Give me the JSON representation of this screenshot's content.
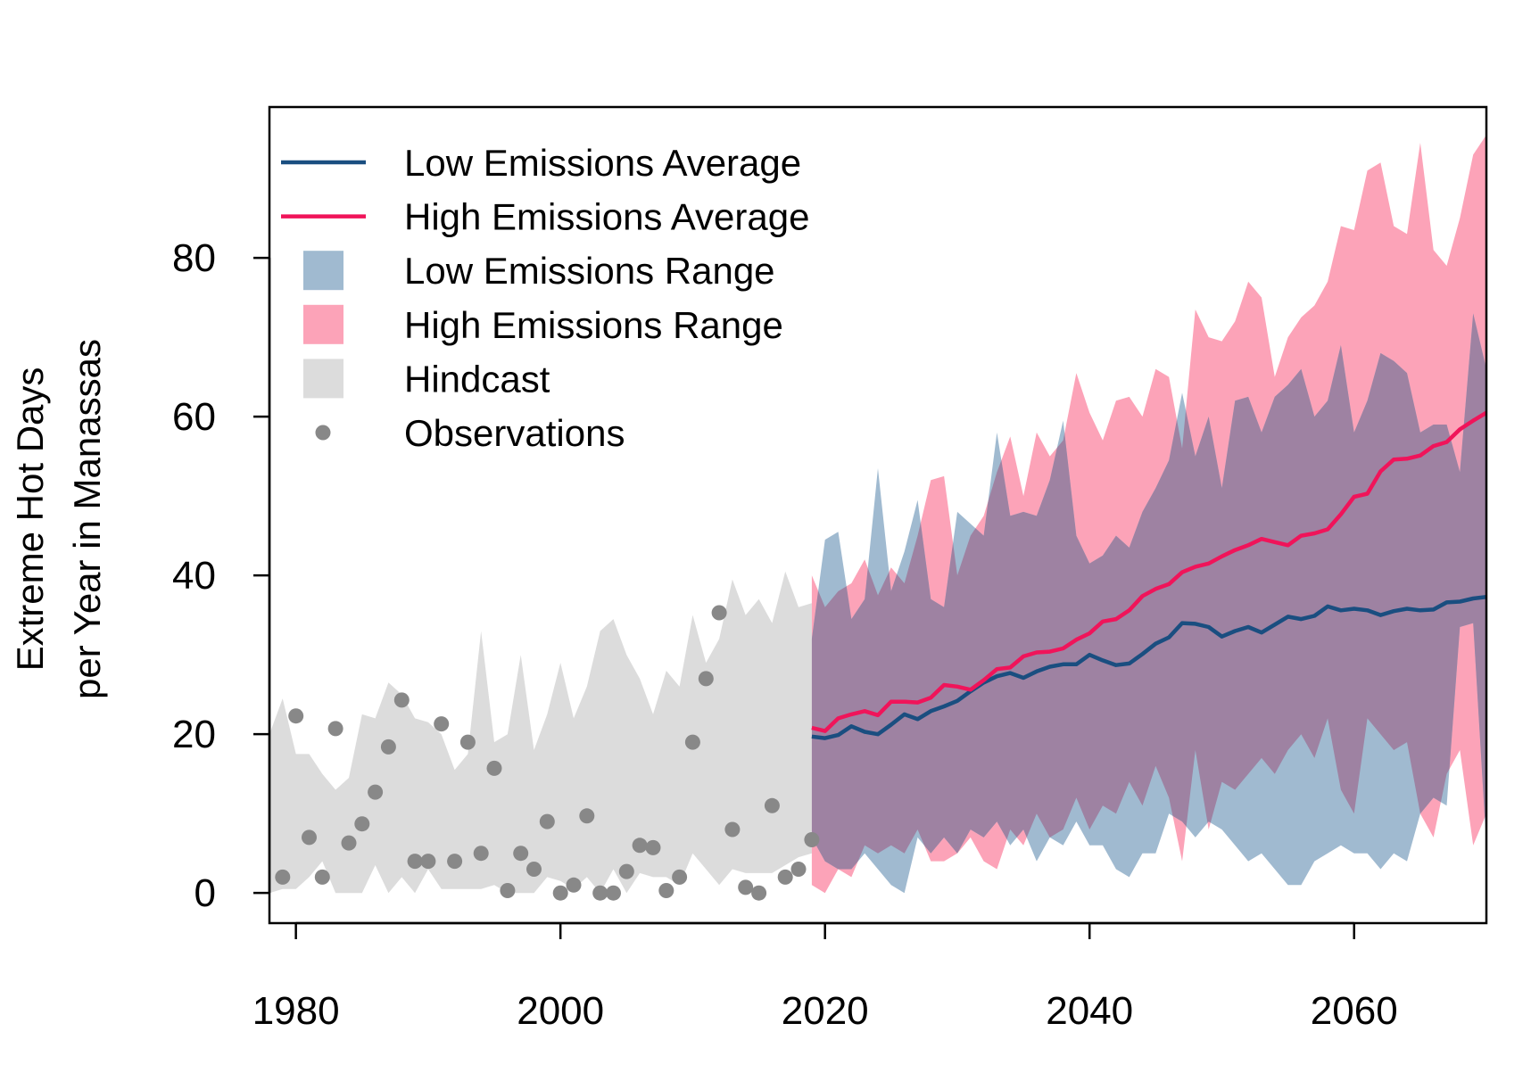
{
  "chart_data": {
    "type": "line",
    "ylabel_lines": [
      "Extreme Hot Days",
      "per Year in Manassas"
    ],
    "xlim": [
      1978,
      2070
    ],
    "ylim": [
      -3.8,
      99
    ],
    "x_ticks": [
      1980,
      2000,
      2020,
      2040,
      2060
    ],
    "x_tick_labels": [
      "1980",
      "2000",
      "2020",
      "2040",
      "2060"
    ],
    "y_ticks": [
      0,
      20,
      40,
      60,
      80
    ],
    "y_tick_labels": [
      "0",
      "20",
      "40",
      "60",
      "80"
    ],
    "legend_position": "top-left",
    "legend": [
      {
        "label": "Low Emissions Average",
        "symbol": "line",
        "color": "#1a4e80"
      },
      {
        "label": "High Emissions Average",
        "symbol": "line",
        "color": "#f0145a"
      },
      {
        "label": "Low Emissions Range",
        "symbol": "box",
        "color": "#a0bad0"
      },
      {
        "label": "High Emissions Range",
        "symbol": "box",
        "color": "#fca3b8"
      },
      {
        "label": "Hindcast",
        "symbol": "box",
        "color": "#dcdcdc"
      },
      {
        "label": "Observations",
        "symbol": "point",
        "color": "#888888"
      }
    ],
    "colors": {
      "low_avg": "#1a4e80",
      "high_avg": "#f0145a",
      "low_range": "#a0bad0",
      "high_range": "#fca3b8",
      "overlap_range": "#9e82a2",
      "hindcast": "#dcdcdc",
      "observations": "#888888"
    },
    "hindcast": {
      "x": [
        1978,
        1979,
        1980,
        1981,
        1982,
        1983,
        1984,
        1985,
        1986,
        1987,
        1988,
        1989,
        1990,
        1991,
        1992,
        1993,
        1994,
        1995,
        1996,
        1997,
        1998,
        1999,
        2000,
        2001,
        2002,
        2003,
        2004,
        2005,
        2006,
        2007,
        2008,
        2009,
        2010,
        2011,
        2012,
        2013,
        2014,
        2015,
        2016,
        2017,
        2018,
        2019
      ],
      "upper": [
        20,
        24.5,
        17.5,
        17.5,
        15,
        13,
        14.5,
        22.5,
        22,
        26.5,
        25,
        22,
        21.5,
        20,
        15.5,
        17.5,
        33,
        19,
        20,
        30,
        18,
        22.5,
        29,
        22,
        26,
        33,
        34.5,
        30,
        27,
        22.5,
        28,
        26,
        35,
        29,
        32,
        39.5,
        35,
        37,
        34,
        40.5,
        36,
        36.5
      ],
      "lower": [
        0,
        0.5,
        0.5,
        2,
        4,
        0,
        0,
        0,
        3.5,
        0,
        2,
        0,
        3,
        0.5,
        0.5,
        0.5,
        0.5,
        1,
        0,
        0,
        0,
        2,
        1.5,
        0.5,
        2,
        0,
        3,
        0,
        2.5,
        2,
        2,
        1,
        5,
        3,
        1,
        3,
        2.5,
        2.5,
        2.5,
        3.5,
        4.5,
        5
      ]
    },
    "low_range": {
      "x": [
        2019,
        2020,
        2021,
        2022,
        2023,
        2024,
        2025,
        2026,
        2027,
        2028,
        2029,
        2030,
        2031,
        2032,
        2033,
        2034,
        2035,
        2036,
        2037,
        2038,
        2039,
        2040,
        2041,
        2042,
        2043,
        2044,
        2045,
        2046,
        2047,
        2048,
        2049,
        2050,
        2051,
        2052,
        2053,
        2054,
        2055,
        2056,
        2057,
        2058,
        2059,
        2060,
        2061,
        2062,
        2063,
        2064,
        2065,
        2066,
        2067,
        2068,
        2069,
        2070
      ],
      "upper": [
        32,
        44.5,
        45.5,
        34.5,
        37,
        53.5,
        38,
        43,
        49.5,
        37,
        36,
        48,
        46.5,
        45,
        58,
        47.5,
        48,
        47.5,
        52,
        59.5,
        45,
        41.5,
        42.5,
        45,
        43.5,
        48,
        51,
        54.5,
        63,
        55,
        60,
        51,
        62,
        62.5,
        58,
        62.5,
        64,
        66,
        60,
        62,
        69,
        58,
        62,
        68,
        67,
        65.5,
        58,
        59,
        59,
        53,
        73,
        66
      ],
      "lower": [
        7,
        4,
        3,
        3,
        5,
        3,
        1,
        0,
        7,
        5,
        7,
        5,
        8,
        7,
        9,
        6,
        8,
        4,
        7,
        6,
        9,
        6,
        6,
        3,
        2,
        5,
        5,
        10,
        9,
        7,
        9,
        8,
        6,
        4,
        5,
        3,
        1,
        1,
        4,
        5,
        6,
        5,
        5,
        3,
        5,
        4,
        10,
        12,
        11,
        33.5,
        34,
        6
      ]
    },
    "high_range": {
      "x": [
        2019,
        2020,
        2021,
        2022,
        2023,
        2024,
        2025,
        2026,
        2027,
        2028,
        2029,
        2030,
        2031,
        2032,
        2033,
        2034,
        2035,
        2036,
        2037,
        2038,
        2039,
        2040,
        2041,
        2042,
        2043,
        2044,
        2045,
        2046,
        2047,
        2048,
        2049,
        2050,
        2051,
        2052,
        2053,
        2054,
        2055,
        2056,
        2057,
        2058,
        2059,
        2060,
        2061,
        2062,
        2063,
        2064,
        2065,
        2066,
        2067,
        2068,
        2069,
        2070
      ],
      "upper": [
        40,
        36,
        38,
        39,
        42,
        37.5,
        41,
        39,
        45,
        52,
        52.5,
        40,
        45,
        47.5,
        53,
        57.5,
        50,
        58,
        55,
        57,
        65.5,
        60.5,
        57,
        62,
        62.5,
        60,
        66,
        65,
        56,
        73.5,
        70,
        69.5,
        72,
        77,
        75,
        65,
        70,
        72.5,
        74,
        77,
        84,
        83.5,
        91,
        92,
        84,
        83,
        94.5,
        81,
        79,
        85,
        93,
        95.5
      ],
      "lower": [
        1,
        0,
        3,
        2,
        6,
        5,
        6,
        5,
        8,
        4,
        4,
        5,
        7,
        4,
        3,
        8,
        6,
        10,
        7,
        8,
        12,
        8,
        11,
        10,
        14,
        11,
        16,
        12,
        4,
        18,
        8,
        14,
        13,
        15,
        17,
        15,
        18,
        20,
        17,
        22,
        13,
        10,
        22,
        20,
        18,
        19,
        10,
        7,
        15,
        18,
        6,
        10
      ]
    },
    "low_avg": {
      "x": [
        2019,
        2020,
        2021,
        2022,
        2023,
        2024,
        2025,
        2026,
        2027,
        2028,
        2029,
        2030,
        2031,
        2032,
        2033,
        2034,
        2035,
        2036,
        2037,
        2038,
        2039,
        2040,
        2041,
        2042,
        2043,
        2044,
        2045,
        2046,
        2047,
        2048,
        2049,
        2050,
        2051,
        2052,
        2053,
        2054,
        2055,
        2056,
        2057,
        2058,
        2059,
        2060,
        2061,
        2062,
        2063,
        2064,
        2065,
        2066,
        2067,
        2068,
        2069,
        2070
      ],
      "y": [
        19.7,
        19.5,
        19.9,
        21,
        20.3,
        20,
        21.2,
        22.5,
        21.9,
        22.9,
        23.5,
        24.2,
        25.4,
        26.5,
        27.3,
        27.7,
        27.1,
        27.9,
        28.5,
        28.8,
        28.8,
        30,
        29.3,
        28.7,
        28.9,
        30.1,
        31.4,
        32.2,
        34,
        33.9,
        33.5,
        32.3,
        33,
        33.5,
        32.8,
        33.8,
        34.8,
        34.5,
        34.9,
        36.1,
        35.6,
        35.8,
        35.6,
        35,
        35.5,
        35.8,
        35.6,
        35.7,
        36.6,
        36.7,
        37.1,
        37.3
      ]
    },
    "high_avg": {
      "x": [
        2019,
        2020,
        2021,
        2022,
        2023,
        2024,
        2025,
        2026,
        2027,
        2028,
        2029,
        2030,
        2031,
        2032,
        2033,
        2034,
        2035,
        2036,
        2037,
        2038,
        2039,
        2040,
        2041,
        2042,
        2043,
        2044,
        2045,
        2046,
        2047,
        2048,
        2049,
        2050,
        2051,
        2052,
        2053,
        2054,
        2055,
        2056,
        2057,
        2058,
        2059,
        2060,
        2061,
        2062,
        2063,
        2064,
        2065,
        2066,
        2067,
        2068,
        2069,
        2070
      ],
      "y": [
        20.8,
        20.4,
        22,
        22.5,
        22.9,
        22.4,
        24.1,
        24.1,
        24,
        24.6,
        26.2,
        26,
        25.6,
        26.8,
        28.2,
        28.4,
        29.8,
        30.3,
        30.4,
        30.8,
        31.9,
        32.7,
        34.2,
        34.5,
        35.6,
        37.4,
        38.3,
        38.9,
        40.4,
        41.1,
        41.5,
        42.4,
        43.2,
        43.8,
        44.6,
        44.2,
        43.8,
        45,
        45.3,
        45.8,
        47.7,
        49.9,
        50.3,
        53.1,
        54.6,
        54.7,
        55.1,
        56.3,
        56.8,
        58.4,
        59.5,
        60.5
      ]
    },
    "observations": {
      "x": [
        1979,
        1980,
        1981,
        1982,
        1983,
        1984,
        1985,
        1986,
        1987,
        1988,
        1989,
        1990,
        1991,
        1992,
        1993,
        1994,
        1995,
        1996,
        1997,
        1998,
        1999,
        2000,
        2001,
        2002,
        2003,
        2004,
        2005,
        2006,
        2007,
        2008,
        2009,
        2010,
        2011,
        2012,
        2013,
        2014,
        2015,
        2016,
        2017,
        2018,
        2019
      ],
      "y": [
        2,
        22.3,
        7,
        2,
        20.7,
        6.3,
        8.7,
        12.7,
        18.4,
        24.3,
        4,
        4,
        21.3,
        4,
        19,
        5,
        15.7,
        0.3,
        5,
        3,
        9,
        0,
        1,
        9.7,
        0,
        0,
        2.7,
        6,
        5.7,
        0.3,
        2,
        19,
        27,
        35.3,
        8,
        0.7,
        0,
        11,
        2,
        3,
        6.7
      ]
    }
  }
}
